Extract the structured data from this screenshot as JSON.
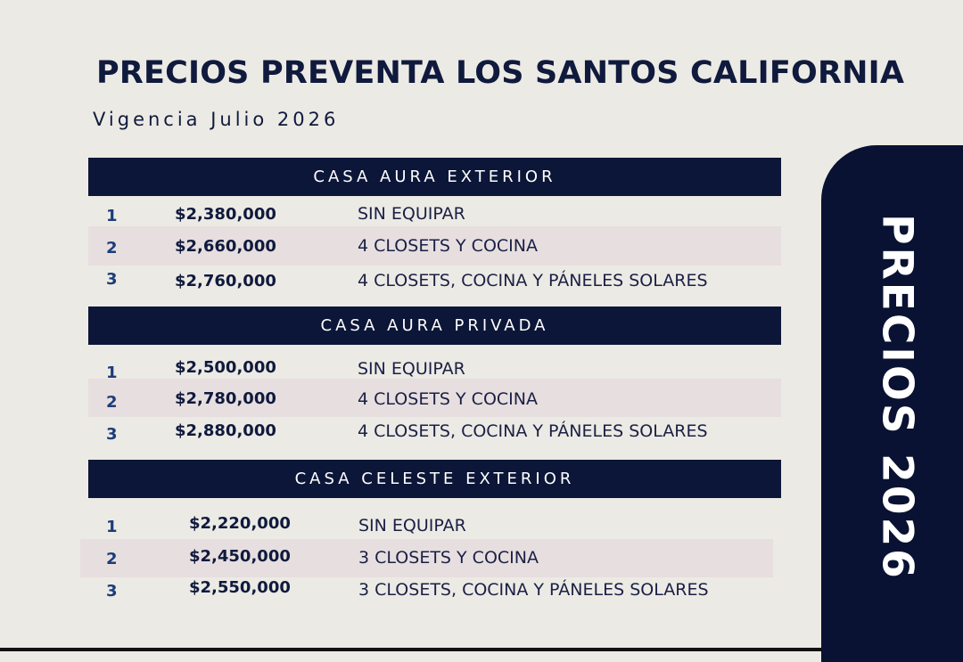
{
  "title": "PRECIOS PREVENTA LOS SANTOS CALIFORNIA",
  "subtitle": "Vigencia Julio 2026",
  "side_label": "PRECIOS 2026",
  "sections": [
    {
      "name": "CASA AURA EXTERIOR",
      "rows": [
        {
          "num": "1",
          "price": "$2,380,000",
          "desc": "SIN EQUIPAR"
        },
        {
          "num": "2",
          "price": "$2,660,000",
          "desc": "4 CLOSETS Y COCINA"
        },
        {
          "num": "3",
          "price": "$2,760,000",
          "desc": "4 CLOSETS, COCINA Y PÁNELES SOLARES"
        }
      ]
    },
    {
      "name": "CASA AURA PRIVADA",
      "rows": [
        {
          "num": "1",
          "price": "$2,500,000",
          "desc": "SIN EQUIPAR"
        },
        {
          "num": "2",
          "price": "$2,780,000",
          "desc": "4 CLOSETS Y COCINA"
        },
        {
          "num": "3",
          "price": "$2,880,000",
          "desc": "4 CLOSETS, COCINA Y PÁNELES SOLARES"
        }
      ]
    },
    {
      "name": "CASA CELESTE EXTERIOR",
      "rows": [
        {
          "num": "1",
          "price": "$2,220,000",
          "desc": "SIN EQUIPAR"
        },
        {
          "num": "2",
          "price": "$2,450,000",
          "desc": "3 CLOSETS Y COCINA"
        },
        {
          "num": "3",
          "price": "$2,550,000",
          "desc": "3 CLOSETS, COCINA Y PÁNELES SOLARES"
        }
      ]
    }
  ],
  "colors": {
    "navy": "#0c1638",
    "background": "#eceae4",
    "row_shade": "#e7dedf"
  }
}
